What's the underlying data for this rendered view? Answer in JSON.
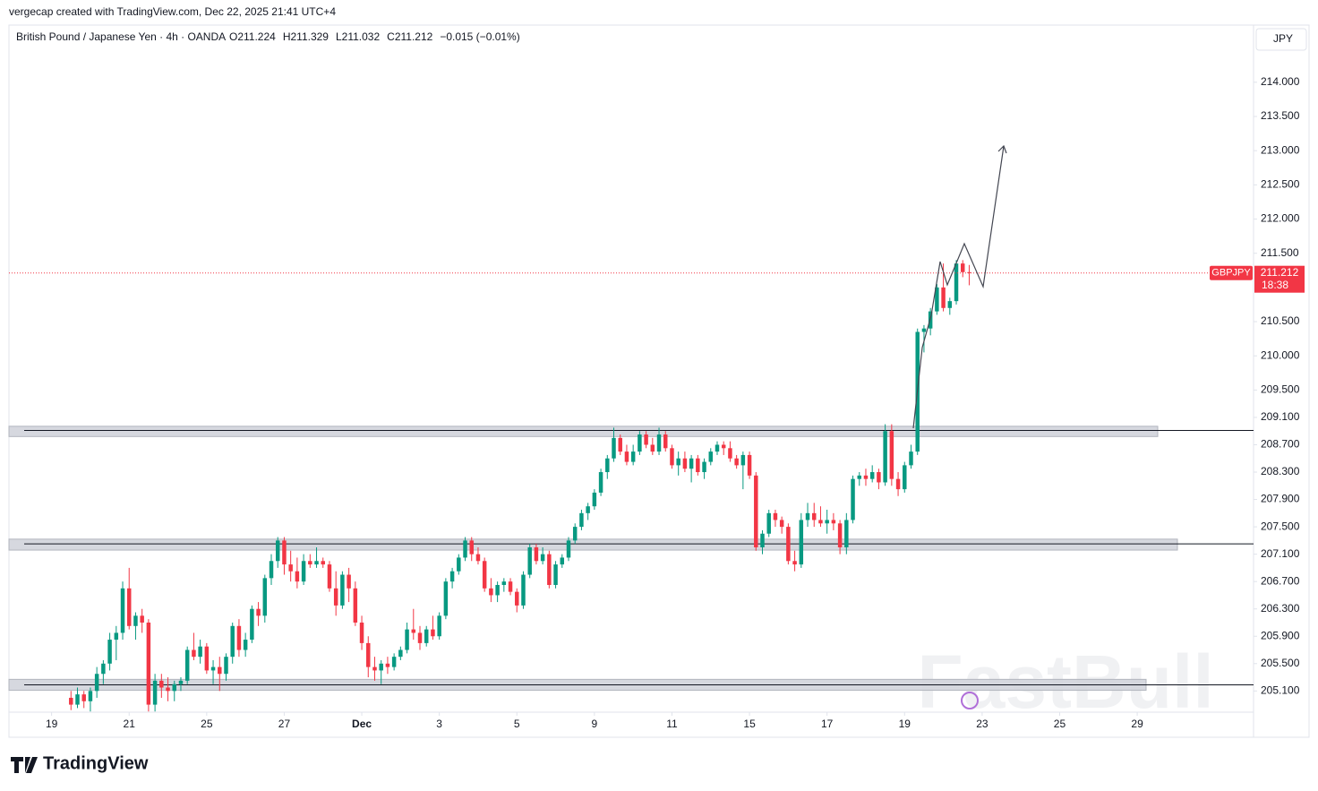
{
  "header": {
    "attribution": "vergecap created with TradingView.com, Dec 22, 2025 21:41 UTC+4",
    "brand": "TradingView"
  },
  "chart_data": {
    "type": "candlestick",
    "title": "British Pound / Japanese Yen · 4h · OANDA",
    "ohlc_text": [
      "O211.224",
      "H211.329",
      "L211.032",
      "C211.212"
    ],
    "change_text": "−0.015 (−0.01%)",
    "currency": "JPY",
    "symbol": "GBPJPY",
    "last_price": 211.212,
    "countdown": "18:38",
    "watermark": "FastBull",
    "up_color": "#089981",
    "down_color": "#f23645",
    "grid": false,
    "ohlc": [
      [
        205.0,
        205.1,
        204.82,
        204.9
      ],
      [
        204.9,
        205.15,
        204.85,
        205.05
      ],
      [
        205.05,
        205.1,
        204.85,
        204.95
      ],
      [
        204.95,
        205.15,
        204.8,
        205.1
      ],
      [
        205.1,
        205.45,
        205.0,
        205.35
      ],
      [
        205.35,
        205.55,
        205.2,
        205.5
      ],
      [
        205.5,
        205.95,
        205.4,
        205.85
      ],
      [
        205.85,
        206.05,
        205.55,
        205.95
      ],
      [
        205.95,
        206.7,
        205.85,
        206.6
      ],
      [
        206.6,
        206.9,
        206.0,
        206.05
      ],
      [
        206.05,
        206.25,
        205.85,
        206.2
      ],
      [
        206.2,
        206.3,
        205.95,
        206.1
      ],
      [
        206.1,
        206.15,
        204.8,
        204.9
      ],
      [
        204.9,
        205.35,
        204.8,
        205.25
      ],
      [
        205.25,
        205.35,
        205.0,
        205.15
      ],
      [
        205.15,
        205.3,
        204.95,
        205.1
      ],
      [
        205.1,
        205.25,
        204.95,
        205.2
      ],
      [
        205.2,
        205.3,
        205.1,
        205.25
      ],
      [
        205.25,
        205.75,
        205.2,
        205.7
      ],
      [
        205.7,
        205.95,
        205.55,
        205.6
      ],
      [
        205.6,
        205.85,
        205.5,
        205.75
      ],
      [
        205.75,
        205.8,
        205.35,
        205.4
      ],
      [
        205.4,
        205.55,
        205.2,
        205.45
      ],
      [
        205.45,
        205.6,
        205.1,
        205.35
      ],
      [
        205.35,
        205.65,
        205.25,
        205.6
      ],
      [
        205.6,
        206.1,
        205.5,
        206.05
      ],
      [
        206.05,
        206.15,
        205.6,
        205.7
      ],
      [
        205.7,
        205.95,
        205.6,
        205.85
      ],
      [
        205.85,
        206.35,
        205.8,
        206.3
      ],
      [
        206.3,
        206.4,
        206.05,
        206.2
      ],
      [
        206.2,
        206.8,
        206.1,
        206.75
      ],
      [
        206.75,
        207.1,
        206.65,
        207.0
      ],
      [
        207.0,
        207.35,
        206.9,
        207.3
      ],
      [
        207.3,
        207.35,
        206.8,
        206.95
      ],
      [
        206.95,
        207.15,
        206.7,
        206.85
      ],
      [
        206.85,
        207.05,
        206.6,
        206.7
      ],
      [
        206.7,
        207.1,
        206.65,
        207.0
      ],
      [
        207.0,
        207.1,
        206.9,
        206.95
      ],
      [
        206.95,
        207.2,
        206.9,
        207.0
      ],
      [
        207.0,
        207.05,
        206.9,
        206.95
      ],
      [
        206.95,
        207.0,
        206.55,
        206.6
      ],
      [
        206.6,
        206.85,
        206.2,
        206.35
      ],
      [
        206.35,
        206.85,
        206.3,
        206.8
      ],
      [
        206.8,
        206.9,
        206.4,
        206.6
      ],
      [
        206.6,
        206.7,
        206.05,
        206.1
      ],
      [
        206.1,
        206.2,
        205.7,
        205.8
      ],
      [
        205.8,
        205.9,
        205.3,
        205.45
      ],
      [
        205.45,
        205.6,
        205.25,
        205.4
      ],
      [
        205.4,
        205.55,
        205.2,
        205.5
      ],
      [
        205.5,
        205.6,
        205.35,
        205.45
      ],
      [
        205.45,
        205.65,
        205.4,
        205.6
      ],
      [
        205.6,
        205.75,
        205.55,
        205.7
      ],
      [
        205.7,
        206.1,
        205.65,
        206.0
      ],
      [
        206.0,
        206.3,
        205.85,
        205.95
      ],
      [
        205.95,
        206.05,
        205.7,
        205.8
      ],
      [
        205.8,
        206.05,
        205.75,
        206.0
      ],
      [
        206.0,
        206.2,
        205.85,
        205.9
      ],
      [
        205.9,
        206.25,
        205.85,
        206.2
      ],
      [
        206.2,
        206.75,
        206.15,
        206.7
      ],
      [
        206.7,
        206.9,
        206.6,
        206.85
      ],
      [
        206.85,
        207.1,
        206.8,
        207.05
      ],
      [
        207.05,
        207.35,
        207.0,
        207.3
      ],
      [
        207.3,
        207.35,
        207.0,
        207.1
      ],
      [
        207.1,
        207.2,
        206.95,
        207.0
      ],
      [
        207.0,
        207.05,
        206.55,
        206.6
      ],
      [
        206.6,
        206.75,
        206.4,
        206.5
      ],
      [
        206.5,
        206.7,
        206.4,
        206.65
      ],
      [
        206.65,
        206.75,
        206.55,
        206.7
      ],
      [
        206.7,
        206.75,
        206.5,
        206.55
      ],
      [
        206.55,
        206.6,
        206.25,
        206.35
      ],
      [
        206.35,
        206.85,
        206.3,
        206.8
      ],
      [
        206.8,
        207.25,
        206.75,
        207.2
      ],
      [
        207.2,
        207.25,
        206.95,
        207.0
      ],
      [
        207.0,
        207.2,
        206.95,
        207.1
      ],
      [
        207.1,
        207.15,
        206.6,
        206.65
      ],
      [
        206.65,
        207.0,
        206.6,
        206.95
      ],
      [
        206.95,
        207.1,
        206.9,
        207.05
      ],
      [
        207.05,
        207.35,
        207.0,
        207.3
      ],
      [
        207.3,
        207.55,
        207.25,
        207.5
      ],
      [
        207.5,
        207.75,
        207.45,
        207.7
      ],
      [
        207.7,
        207.85,
        207.6,
        207.8
      ],
      [
        207.8,
        208.05,
        207.75,
        208.0
      ],
      [
        208.0,
        208.35,
        207.95,
        208.3
      ],
      [
        208.3,
        208.55,
        208.2,
        208.5
      ],
      [
        208.5,
        208.95,
        208.45,
        208.8
      ],
      [
        208.8,
        208.85,
        208.55,
        208.6
      ],
      [
        208.6,
        208.7,
        208.4,
        208.45
      ],
      [
        208.45,
        208.7,
        208.4,
        208.6
      ],
      [
        208.6,
        208.9,
        208.55,
        208.85
      ],
      [
        208.85,
        208.9,
        208.65,
        208.7
      ],
      [
        208.7,
        208.8,
        208.55,
        208.6
      ],
      [
        208.6,
        208.95,
        208.55,
        208.85
      ],
      [
        208.85,
        208.9,
        208.6,
        208.65
      ],
      [
        208.65,
        208.7,
        208.35,
        208.4
      ],
      [
        208.4,
        208.6,
        208.25,
        208.5
      ],
      [
        208.5,
        208.6,
        208.3,
        208.35
      ],
      [
        208.35,
        208.55,
        208.15,
        208.5
      ],
      [
        208.5,
        208.55,
        208.25,
        208.3
      ],
      [
        208.3,
        208.5,
        208.2,
        208.45
      ],
      [
        208.45,
        208.65,
        208.4,
        208.6
      ],
      [
        208.6,
        208.75,
        208.55,
        208.7
      ],
      [
        208.7,
        208.75,
        208.55,
        208.65
      ],
      [
        208.65,
        208.75,
        208.45,
        208.5
      ],
      [
        208.5,
        208.55,
        208.35,
        208.4
      ],
      [
        208.4,
        208.6,
        208.05,
        208.55
      ],
      [
        208.55,
        208.6,
        208.2,
        208.25
      ],
      [
        208.25,
        208.3,
        207.15,
        207.2
      ],
      [
        207.2,
        207.45,
        207.1,
        207.4
      ],
      [
        207.4,
        207.75,
        207.35,
        207.7
      ],
      [
        207.7,
        207.75,
        207.5,
        207.6
      ],
      [
        207.6,
        207.65,
        207.4,
        207.5
      ],
      [
        207.5,
        207.55,
        206.95,
        207.0
      ],
      [
        207.0,
        207.15,
        206.85,
        206.95
      ],
      [
        206.95,
        207.7,
        206.9,
        207.6
      ],
      [
        207.6,
        207.85,
        207.5,
        207.7
      ],
      [
        207.7,
        207.85,
        207.5,
        207.6
      ],
      [
        207.6,
        207.8,
        207.5,
        207.55
      ],
      [
        207.55,
        207.75,
        207.4,
        207.6
      ],
      [
        207.6,
        207.7,
        207.45,
        207.55
      ],
      [
        207.55,
        207.6,
        207.1,
        207.2
      ],
      [
        207.2,
        207.7,
        207.1,
        207.6
      ],
      [
        207.6,
        208.25,
        207.55,
        208.2
      ],
      [
        208.2,
        208.3,
        208.1,
        208.25
      ],
      [
        208.25,
        208.35,
        208.1,
        208.2
      ],
      [
        208.2,
        208.4,
        208.15,
        208.3
      ],
      [
        208.3,
        208.35,
        208.05,
        208.15
      ],
      [
        208.15,
        209.0,
        208.1,
        208.9
      ],
      [
        208.9,
        209.0,
        208.1,
        208.2
      ],
      [
        208.2,
        208.3,
        207.95,
        208.05
      ],
      [
        208.05,
        208.45,
        208.0,
        208.4
      ],
      [
        208.4,
        208.7,
        208.35,
        208.6
      ],
      [
        208.6,
        210.4,
        208.55,
        210.35
      ],
      [
        210.35,
        210.45,
        210.05,
        210.4
      ],
      [
        210.4,
        210.7,
        210.3,
        210.65
      ],
      [
        210.65,
        211.05,
        210.6,
        211.0
      ],
      [
        211.0,
        211.35,
        210.65,
        210.7
      ],
      [
        210.7,
        210.85,
        210.6,
        210.8
      ],
      [
        210.8,
        211.4,
        210.75,
        211.35
      ],
      [
        211.35,
        211.4,
        211.15,
        211.224
      ],
      [
        211.224,
        211.329,
        211.032,
        211.212
      ]
    ],
    "zones": [
      {
        "low": 208.82,
        "high": 208.97
      },
      {
        "low": 207.16,
        "high": 207.32
      },
      {
        "low": 205.11,
        "high": 205.27
      }
    ],
    "levels": [
      208.91,
      207.25,
      205.19
    ],
    "xlim": [
      -9.6,
      183
    ],
    "ylim": [
      204.79,
      214.81
    ],
    "xticks": [
      {
        "value": -3,
        "label": "19"
      },
      {
        "value": 9,
        "label": "21"
      },
      {
        "value": 21,
        "label": "25"
      },
      {
        "value": 33,
        "label": "27"
      },
      {
        "value": 45,
        "label": "Dec"
      },
      {
        "value": 57,
        "label": "3"
      },
      {
        "value": 69,
        "label": "5"
      },
      {
        "value": 81,
        "label": "9"
      },
      {
        "value": 93,
        "label": "11"
      },
      {
        "value": 105,
        "label": "15"
      },
      {
        "value": 117,
        "label": "17"
      },
      {
        "value": 129,
        "label": "19"
      },
      {
        "value": 141,
        "label": "23"
      },
      {
        "value": 153,
        "label": "25"
      },
      {
        "value": 165,
        "label": "29"
      }
    ],
    "yticks": [
      {
        "value": 214,
        "label": "214.000"
      },
      {
        "value": 213.5,
        "label": "213.500"
      },
      {
        "value": 213,
        "label": "213.000"
      },
      {
        "value": 212.5,
        "label": "212.500"
      },
      {
        "value": 212,
        "label": "212.000"
      },
      {
        "value": 211.5,
        "label": "211.500"
      },
      {
        "value": 210.5,
        "label": "210.500"
      },
      {
        "value": 210,
        "label": "210.000"
      },
      {
        "value": 209.5,
        "label": "209.500"
      },
      {
        "value": 209.1,
        "label": "209.100"
      },
      {
        "value": 208.7,
        "label": "208.700"
      },
      {
        "value": 208.3,
        "label": "208.300"
      },
      {
        "value": 207.9,
        "label": "207.900"
      },
      {
        "value": 207.5,
        "label": "207.500"
      },
      {
        "value": 207.1,
        "label": "207.100"
      },
      {
        "value": 206.7,
        "label": "206.700"
      },
      {
        "value": 206.3,
        "label": "206.300"
      },
      {
        "value": 205.9,
        "label": "205.900"
      },
      {
        "value": 205.5,
        "label": "205.500"
      },
      {
        "value": 205.1,
        "label": "205.100"
      }
    ]
  }
}
